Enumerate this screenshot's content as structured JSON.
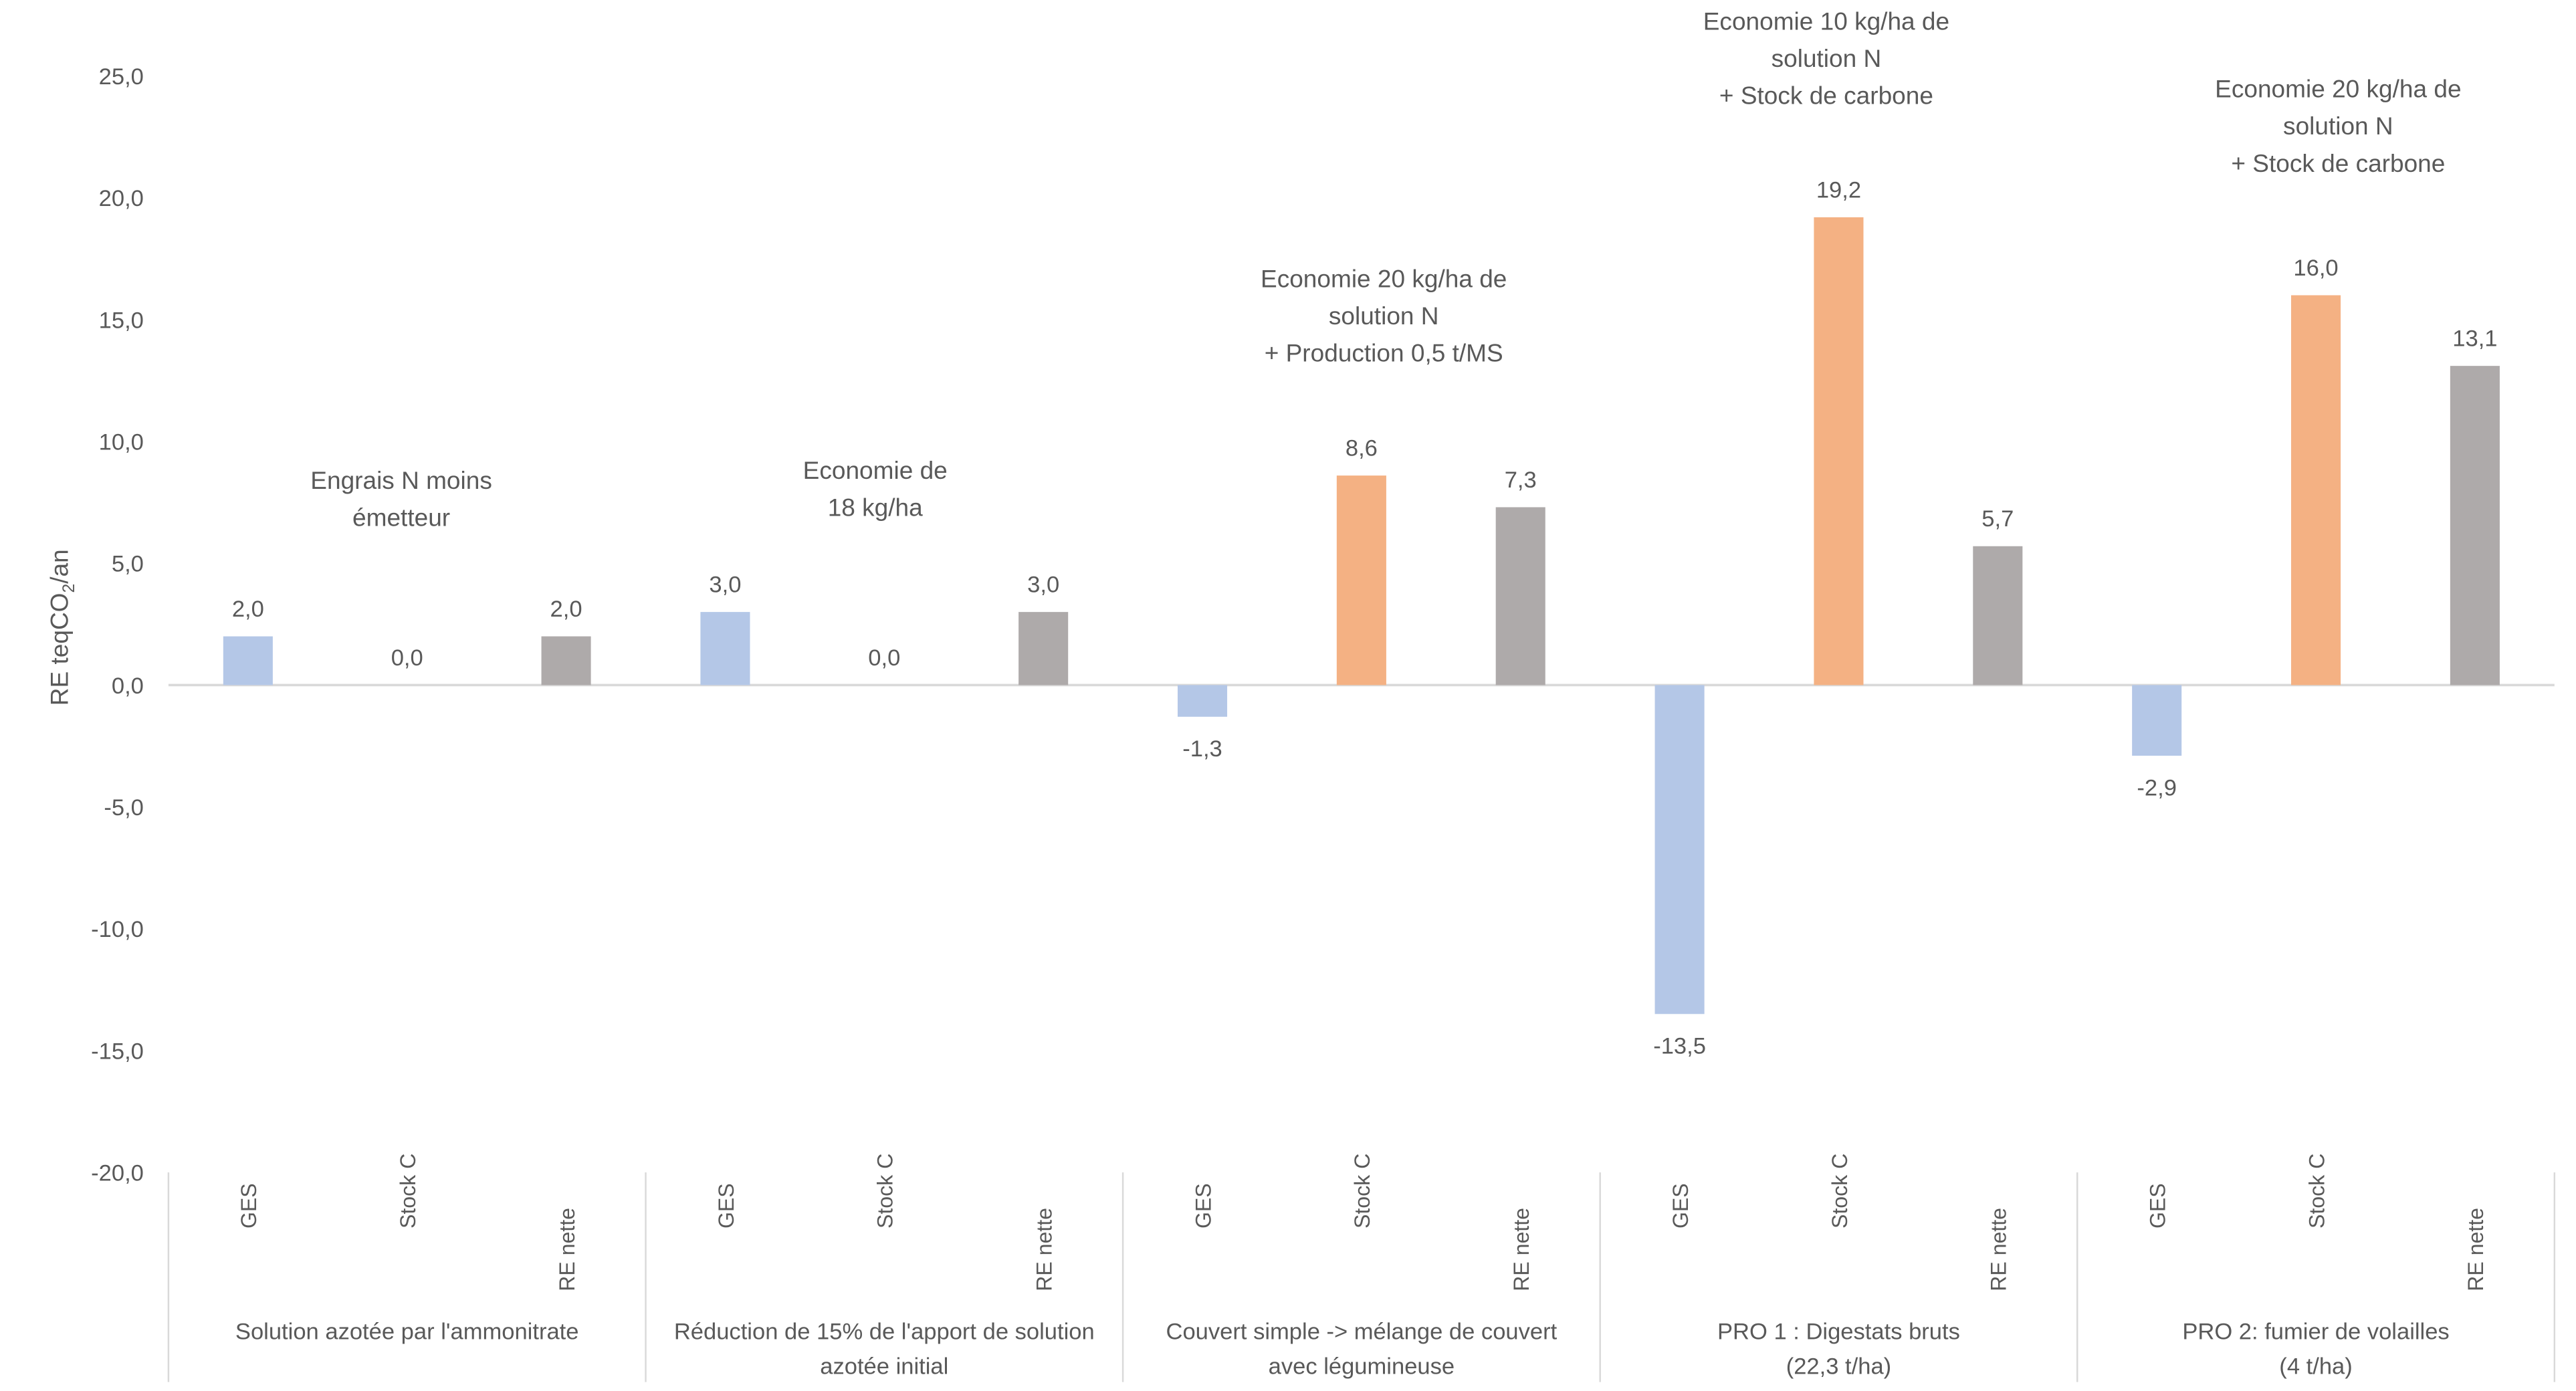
{
  "chart_data": {
    "type": "bar",
    "ylabel": "RE teqCO2/an",
    "ylabel_parts": {
      "main": "RE teqCO",
      "sub": "2",
      "tail": "/an"
    },
    "ylim": [
      -20,
      25
    ],
    "yticks": [
      "-20,0",
      "-15,0",
      "-10,0",
      "-5,0",
      "0,0",
      "5,0",
      "10,0",
      "15,0",
      "20,0",
      "25,0"
    ],
    "ytick_values": [
      -20,
      -15,
      -10,
      -5,
      0,
      5,
      10,
      15,
      20,
      25
    ],
    "series_colors": {
      "GES": "#B4C7E7",
      "Stock C": "#F4B183",
      "RE nette": "#AEAAAA"
    },
    "groups": [
      {
        "label": [
          "Solution azotée par l'ammonitrate"
        ],
        "annotation": [
          "Engrais N moins",
          "émetteur"
        ],
        "bars": [
          {
            "name": "GES",
            "value": 2.0,
            "label": "2,0"
          },
          {
            "name": "Stock C",
            "value": 0.0,
            "label": "0,0"
          },
          {
            "name": "RE nette",
            "value": 2.0,
            "label": "2,0"
          }
        ]
      },
      {
        "label": [
          "Réduction de 15% de l'apport de solution",
          "azotée initial"
        ],
        "annotation": [
          "Economie de",
          "18 kg/ha"
        ],
        "bars": [
          {
            "name": "GES",
            "value": 3.0,
            "label": "3,0"
          },
          {
            "name": "Stock C",
            "value": 0.0,
            "label": "0,0"
          },
          {
            "name": "RE nette",
            "value": 3.0,
            "label": "3,0"
          }
        ]
      },
      {
        "label": [
          "Couvert simple -> mélange de couvert",
          "avec légumineuse"
        ],
        "annotation": [
          "Economie 20 kg/ha de",
          "solution N",
          "+ Production 0,5 t/MS"
        ],
        "bars": [
          {
            "name": "GES",
            "value": -1.3,
            "label": "-1,3"
          },
          {
            "name": "Stock C",
            "value": 8.6,
            "label": "8,6"
          },
          {
            "name": "RE nette",
            "value": 7.3,
            "label": "7,3"
          }
        ]
      },
      {
        "label": [
          "PRO 1 : Digestats bruts",
          "(22,3  t/ha)"
        ],
        "annotation": [
          "Economie 10 kg/ha de",
          "solution N",
          "+ Stock de carbone"
        ],
        "bars": [
          {
            "name": "GES",
            "value": -13.5,
            "label": "-13,5"
          },
          {
            "name": "Stock C",
            "value": 19.2,
            "label": "19,2"
          },
          {
            "name": "RE nette",
            "value": 5.7,
            "label": "5,7"
          }
        ]
      },
      {
        "label": [
          "PRO 2: fumier de volailles",
          "(4 t/ha)"
        ],
        "annotation": [
          "Economie 20 kg/ha de",
          "solution N",
          "+ Stock de carbone"
        ],
        "bars": [
          {
            "name": "GES",
            "value": -2.9,
            "label": "-2,9"
          },
          {
            "name": "Stock C",
            "value": 16.0,
            "label": "16,0"
          },
          {
            "name": "RE nette",
            "value": 13.1,
            "label": "13,1"
          }
        ]
      }
    ]
  }
}
